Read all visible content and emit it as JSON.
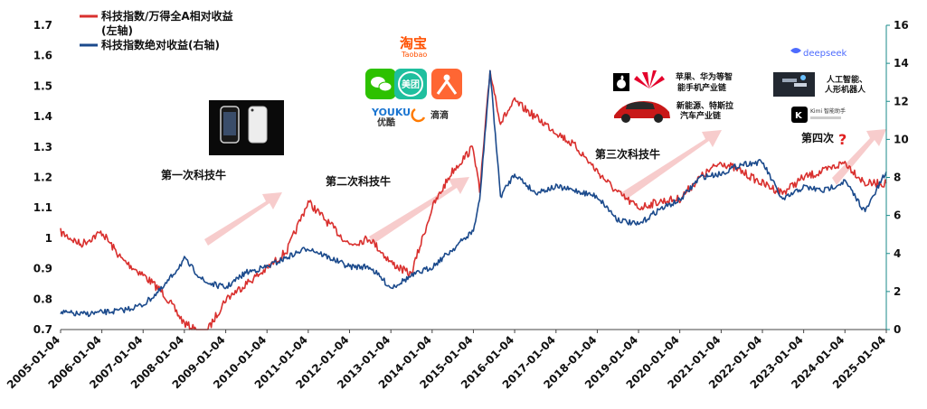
{
  "chart_data": {
    "type": "line",
    "left_axis": {
      "ylim": [
        0.7,
        1.7
      ],
      "ticks": [
        "0.7",
        "0.8",
        "0.9",
        "1",
        "1.1",
        "1.2",
        "1.3",
        "1.4",
        "1.5",
        "1.6",
        "1.7"
      ]
    },
    "right_axis": {
      "ylim": [
        0,
        16
      ],
      "ticks": [
        "0",
        "2",
        "4",
        "6",
        "8",
        "10",
        "12",
        "14",
        "16"
      ]
    },
    "x_ticks": [
      "2005-01-04",
      "2006-01-04",
      "2007-01-04",
      "2008-01-04",
      "2009-01-04",
      "2010-01-04",
      "2011-01-04",
      "2012-01-04",
      "2013-01-04",
      "2014-01-04",
      "2015-01-04",
      "2016-01-04",
      "2017-01-04",
      "2018-01-04",
      "2019-01-04",
      "2020-01-04",
      "2021-01-04",
      "2022-01-04",
      "2023-01-04",
      "2024-01-04",
      "2025-01-04"
    ],
    "x_range": [
      "2005-01-04",
      "2025-01-04"
    ],
    "grid": false,
    "legend_position": "top-left",
    "series": [
      {
        "name": "科技指数/万得全A相对收益(左轴)",
        "axis": "left",
        "color": "#d9302e",
        "x": [
          "2005-01-04",
          "2005-07-01",
          "2006-01-04",
          "2006-07-01",
          "2007-01-04",
          "2007-07-01",
          "2008-01-04",
          "2008-07-01",
          "2009-01-04",
          "2009-07-01",
          "2010-01-04",
          "2010-07-01",
          "2011-01-04",
          "2011-07-01",
          "2012-01-04",
          "2012-07-01",
          "2013-01-04",
          "2013-07-01",
          "2014-01-04",
          "2014-07-01",
          "2015-01-04",
          "2015-03-01",
          "2015-06-01",
          "2015-09-01",
          "2016-01-04",
          "2016-07-01",
          "2017-01-04",
          "2017-07-01",
          "2018-01-04",
          "2018-07-01",
          "2019-01-04",
          "2019-07-01",
          "2020-01-04",
          "2020-07-01",
          "2021-01-04",
          "2021-07-01",
          "2022-01-04",
          "2022-07-01",
          "2023-01-04",
          "2023-07-01",
          "2024-01-04",
          "2024-07-01",
          "2025-01-04"
        ],
        "values": [
          1.02,
          0.98,
          1.02,
          0.93,
          0.88,
          0.82,
          0.72,
          0.68,
          0.8,
          0.85,
          0.9,
          0.96,
          1.12,
          1.05,
          0.98,
          1.0,
          0.92,
          0.88,
          1.1,
          1.22,
          1.3,
          1.15,
          1.55,
          1.38,
          1.45,
          1.4,
          1.35,
          1.3,
          1.22,
          1.15,
          1.1,
          1.12,
          1.13,
          1.2,
          1.25,
          1.22,
          1.18,
          1.15,
          1.2,
          1.22,
          1.25,
          1.18,
          1.18
        ]
      },
      {
        "name": "科技指数绝对收益(右轴)",
        "axis": "right",
        "color": "#1b4a8c",
        "x": [
          "2005-01-04",
          "2005-07-01",
          "2006-01-04",
          "2006-07-01",
          "2007-01-04",
          "2007-07-01",
          "2008-01-04",
          "2008-07-01",
          "2009-01-04",
          "2009-07-01",
          "2010-01-04",
          "2010-07-01",
          "2011-01-04",
          "2011-07-01",
          "2012-01-04",
          "2012-07-01",
          "2013-01-04",
          "2013-07-01",
          "2014-01-04",
          "2014-07-01",
          "2015-01-04",
          "2015-03-01",
          "2015-06-01",
          "2015-09-01",
          "2016-01-04",
          "2016-07-01",
          "2017-01-04",
          "2017-07-01",
          "2018-01-04",
          "2018-07-01",
          "2019-01-04",
          "2019-07-01",
          "2020-01-04",
          "2020-07-01",
          "2021-01-04",
          "2021-07-01",
          "2022-01-04",
          "2022-07-01",
          "2023-01-04",
          "2023-07-01",
          "2024-01-04",
          "2024-07-01",
          "2025-01-04"
        ],
        "values": [
          0.9,
          0.8,
          0.9,
          1.0,
          1.3,
          2.2,
          3.7,
          2.5,
          2.2,
          3.0,
          3.3,
          3.8,
          4.3,
          3.8,
          3.3,
          3.3,
          2.2,
          2.8,
          3.3,
          4.2,
          5.2,
          6.8,
          13.6,
          7.0,
          8.2,
          7.2,
          7.5,
          7.3,
          7.0,
          5.8,
          5.5,
          6.3,
          6.8,
          8.0,
          8.2,
          8.7,
          8.8,
          6.8,
          7.5,
          7.3,
          7.8,
          6.2,
          8.3
        ]
      }
    ],
    "annotations": [
      "第一次科技牛",
      "第二次科技牛",
      "第三次科技牛",
      "第四次"
    ]
  },
  "legend": [
    {
      "line1": "科技指数/万得全A相对收益",
      "line2": "(左轴)",
      "color": "#d9302e"
    },
    {
      "line1": "科技指数绝对收益(右轴)",
      "line2": "",
      "color": "#1b4a8c"
    }
  ],
  "images": {
    "taobao": {
      "main": "淘宝",
      "sub": "Taobao"
    },
    "meituan": "美团",
    "youku": {
      "main": "YOUKU",
      "sub": "优酷"
    },
    "didi": "滴滴",
    "apple_huawei_caption": [
      "苹果、华为等智",
      "能手机产业链"
    ],
    "tesla_caption": [
      "新能源、特斯拉",
      "汽车产业链"
    ],
    "deepseek": "deepseek",
    "ai_caption": [
      "人工智能、",
      "人形机器人"
    ],
    "kimi": "Kimi 智能助手",
    "question_mark": "?"
  },
  "colors": {
    "red_series": "#d9302e",
    "blue_series": "#1b4a8c",
    "arrow_fill": "#f6c6c6",
    "right_axis": "#1a8a8a"
  }
}
